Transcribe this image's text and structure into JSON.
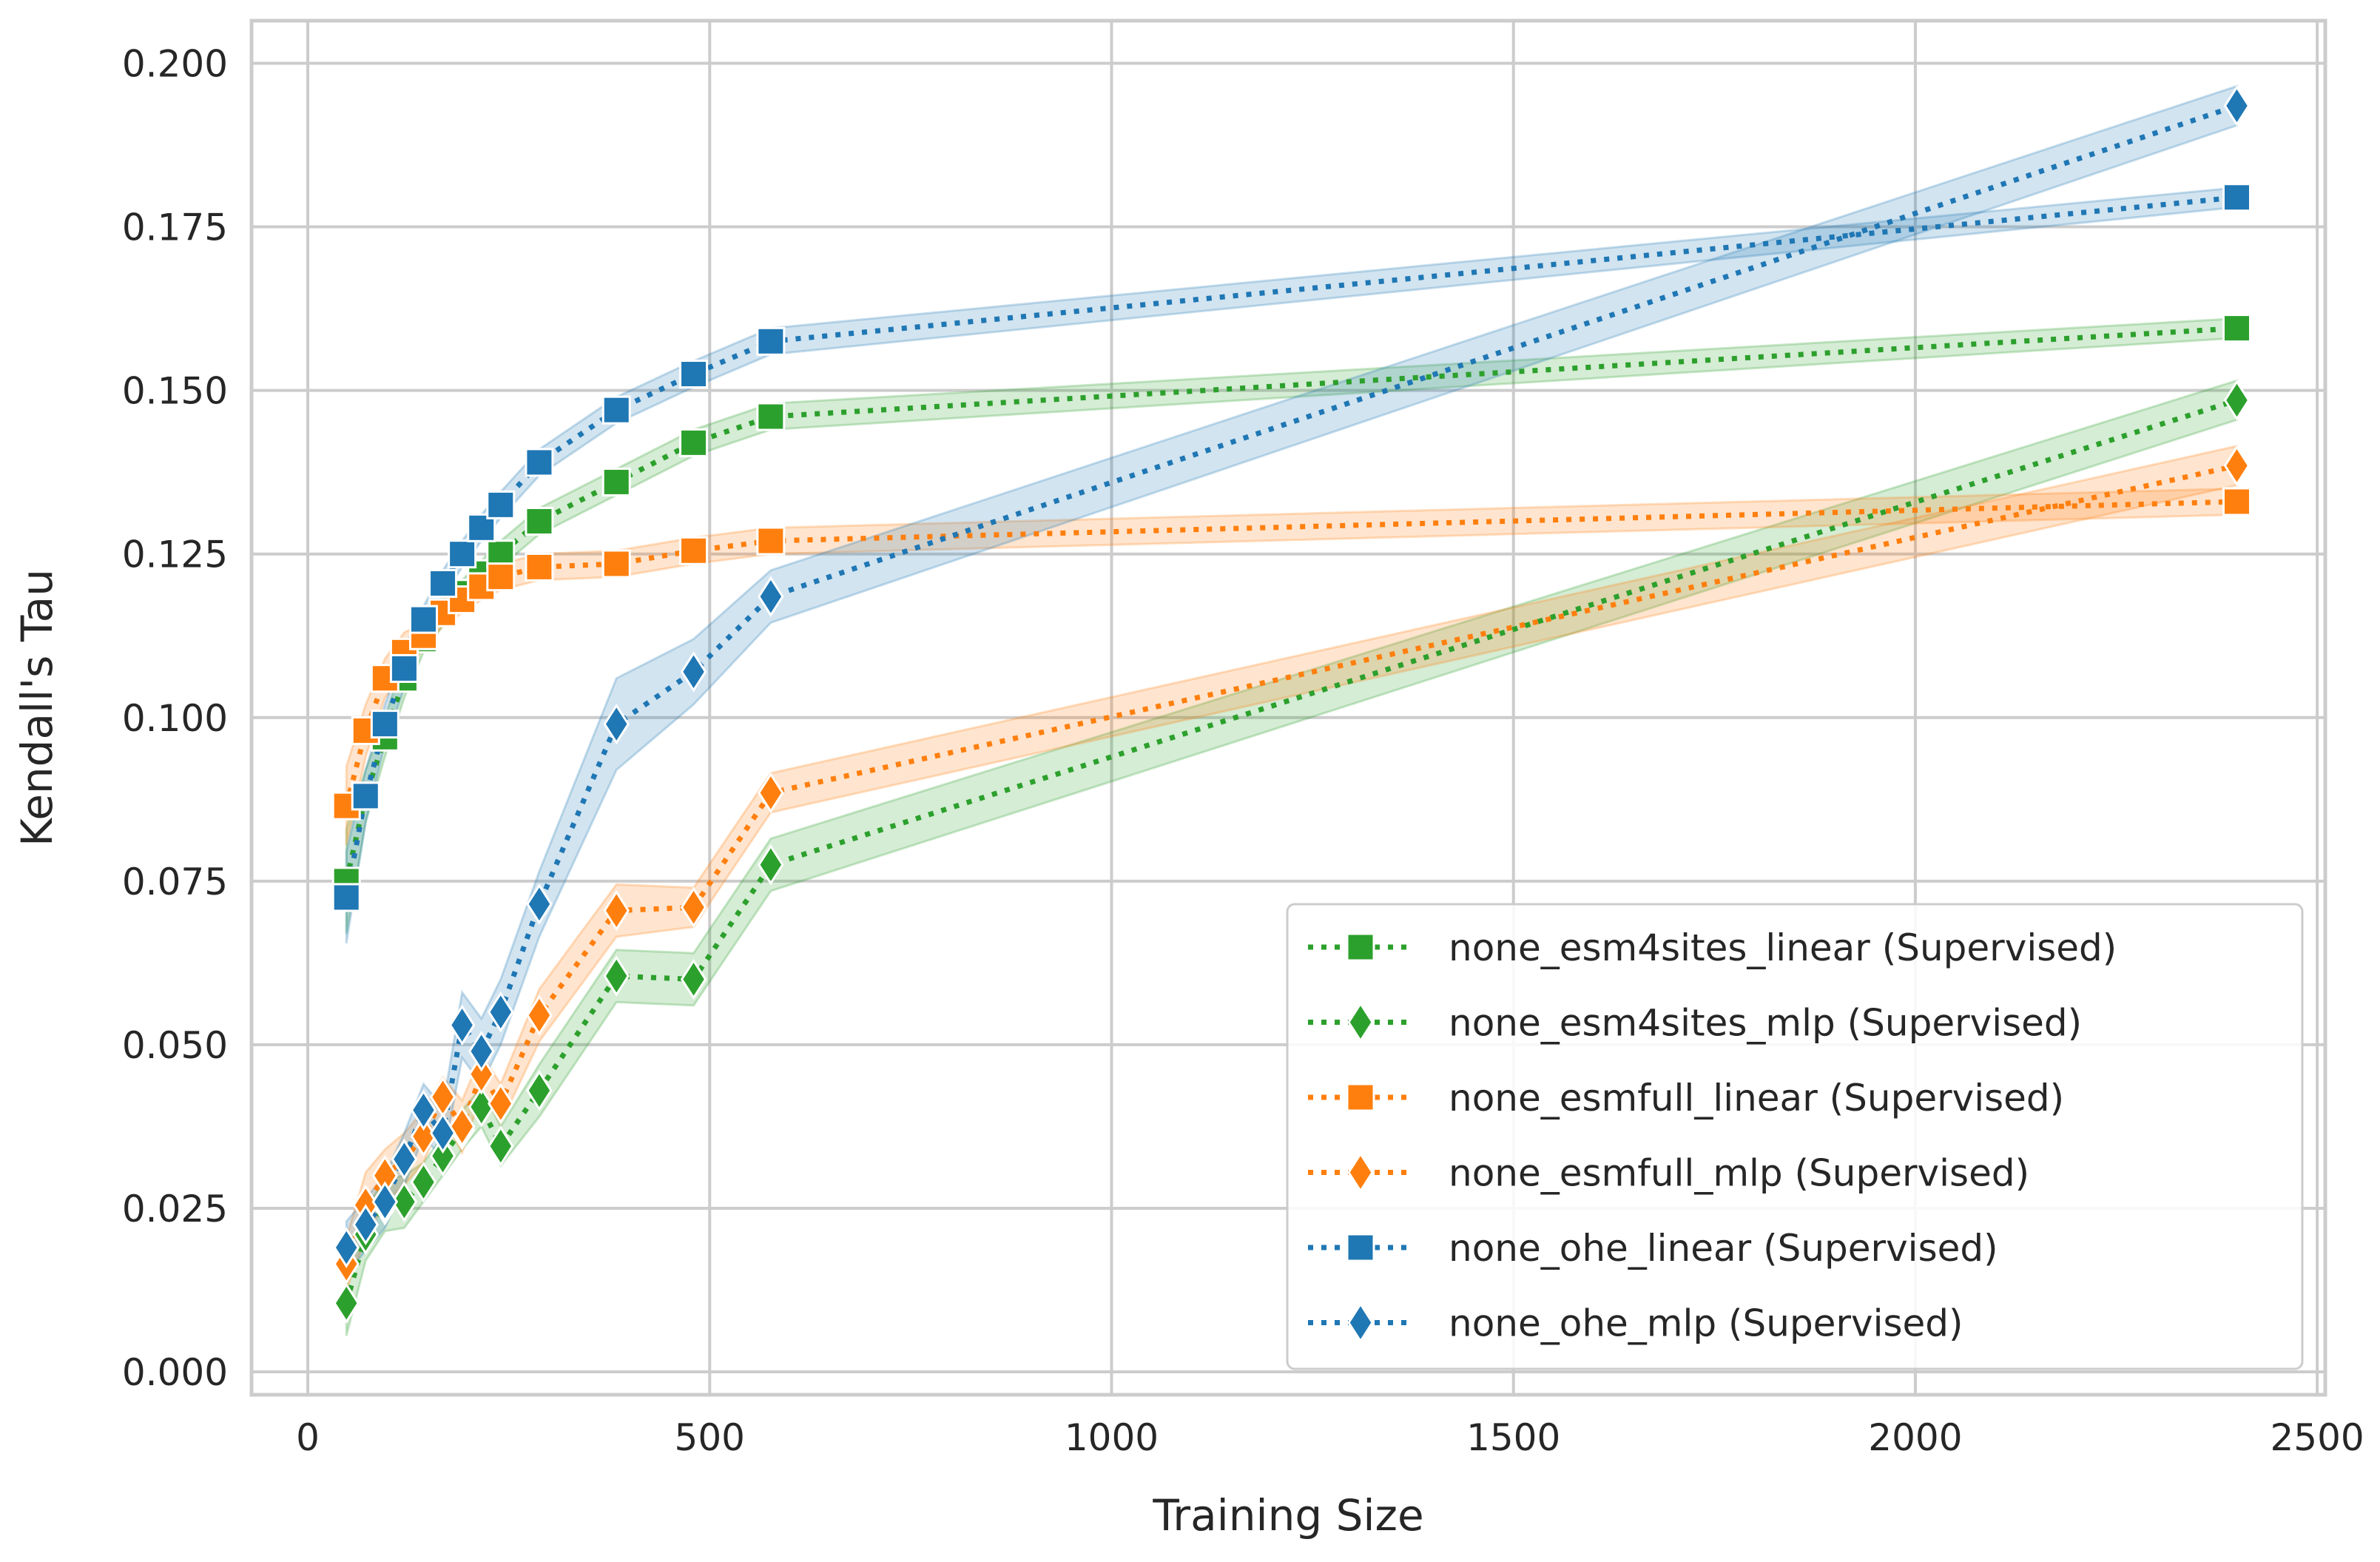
{
  "chart_data": {
    "type": "line",
    "xlabel": "Training Size",
    "ylabel": "Kendall's Tau",
    "xlim": [
      -70,
      2510
    ],
    "ylim": [
      -0.0035,
      0.2065
    ],
    "xticks": [
      0,
      500,
      1000,
      1500,
      2000,
      2500
    ],
    "yticks": [
      0.0,
      0.025,
      0.05,
      0.075,
      0.1,
      0.125,
      0.15,
      0.175,
      0.2
    ],
    "xtick_labels": [
      "0",
      "500",
      "1000",
      "1500",
      "2000",
      "2500"
    ],
    "ytick_labels": [
      "0.000",
      "0.025",
      "0.050",
      "0.075",
      "0.100",
      "0.125",
      "0.150",
      "0.175",
      "0.200"
    ],
    "grid": true,
    "legend_position": "lower-right",
    "series": [
      {
        "name": "none_esm4sites_linear (Supervised)",
        "color": "#2ca02c",
        "marker": "square",
        "x": [
          48,
          72,
          96,
          120,
          144,
          168,
          192,
          216,
          240,
          288,
          384,
          480,
          576,
          2400
        ],
        "y": [
          0.075,
          0.088,
          0.097,
          0.106,
          0.112,
          0.116,
          0.119,
          0.122,
          0.125,
          0.13,
          0.136,
          0.142,
          0.146,
          0.1595
        ],
        "band": [
          0.008,
          0.004,
          0.003,
          0.003,
          0.002,
          0.002,
          0.002,
          0.002,
          0.002,
          0.002,
          0.002,
          0.002,
          0.002,
          0.0015
        ]
      },
      {
        "name": "none_esm4sites_mlp (Supervised)",
        "color": "#2ca02c",
        "marker": "diamond",
        "x": [
          48,
          72,
          96,
          120,
          144,
          168,
          192,
          216,
          240,
          288,
          384,
          480,
          576,
          2400
        ],
        "y": [
          0.0105,
          0.021,
          0.0255,
          0.026,
          0.029,
          0.033,
          0.037,
          0.0405,
          0.0345,
          0.043,
          0.0605,
          0.06,
          0.0775,
          0.1485
        ],
        "band": [
          0.005,
          0.004,
          0.004,
          0.004,
          0.003,
          0.003,
          0.003,
          0.003,
          0.003,
          0.004,
          0.004,
          0.004,
          0.004,
          0.003
        ]
      },
      {
        "name": "none_esmfull_linear (Supervised)",
        "color": "#ff7f0e",
        "marker": "square",
        "x": [
          48,
          72,
          96,
          120,
          144,
          168,
          192,
          216,
          240,
          288,
          384,
          480,
          576,
          2400
        ],
        "y": [
          0.0865,
          0.098,
          0.106,
          0.11,
          0.1125,
          0.116,
          0.118,
          0.12,
          0.1215,
          0.123,
          0.1235,
          0.1255,
          0.127,
          0.133
        ],
        "band": [
          0.006,
          0.004,
          0.003,
          0.003,
          0.002,
          0.002,
          0.002,
          0.002,
          0.002,
          0.002,
          0.002,
          0.002,
          0.002,
          0.002
        ]
      },
      {
        "name": "none_esmfull_mlp (Supervised)",
        "color": "#ff7f0e",
        "marker": "diamond",
        "x": [
          48,
          72,
          96,
          120,
          144,
          168,
          192,
          216,
          240,
          288,
          384,
          480,
          576,
          2400
        ],
        "y": [
          0.0165,
          0.0255,
          0.03,
          0.0325,
          0.036,
          0.042,
          0.0375,
          0.0455,
          0.041,
          0.0545,
          0.0705,
          0.071,
          0.0885,
          0.1385
        ],
        "band": [
          0.004,
          0.005,
          0.004,
          0.004,
          0.004,
          0.003,
          0.004,
          0.003,
          0.003,
          0.004,
          0.004,
          0.003,
          0.003,
          0.003
        ]
      },
      {
        "name": "none_ohe_linear (Supervised)",
        "color": "#1f77b4",
        "marker": "square",
        "x": [
          48,
          72,
          96,
          120,
          144,
          168,
          192,
          216,
          240,
          288,
          384,
          480,
          576,
          2400
        ],
        "y": [
          0.0725,
          0.088,
          0.099,
          0.1075,
          0.115,
          0.1205,
          0.125,
          0.129,
          0.1325,
          0.139,
          0.147,
          0.1525,
          0.1575,
          0.1795
        ],
        "band": [
          0.007,
          0.004,
          0.003,
          0.003,
          0.002,
          0.002,
          0.002,
          0.002,
          0.002,
          0.002,
          0.002,
          0.002,
          0.002,
          0.0015
        ]
      },
      {
        "name": "none_ohe_mlp (Supervised)",
        "color": "#1f77b4",
        "marker": "diamond",
        "x": [
          48,
          72,
          96,
          120,
          144,
          168,
          192,
          216,
          240,
          288,
          384,
          480,
          576,
          2400
        ],
        "y": [
          0.019,
          0.0225,
          0.026,
          0.0325,
          0.04,
          0.0365,
          0.053,
          0.049,
          0.055,
          0.0715,
          0.099,
          0.107,
          0.1185,
          0.1935
        ],
        "band": [
          0.004,
          0.004,
          0.004,
          0.004,
          0.004,
          0.004,
          0.005,
          0.005,
          0.005,
          0.005,
          0.007,
          0.005,
          0.004,
          0.003
        ]
      }
    ]
  }
}
